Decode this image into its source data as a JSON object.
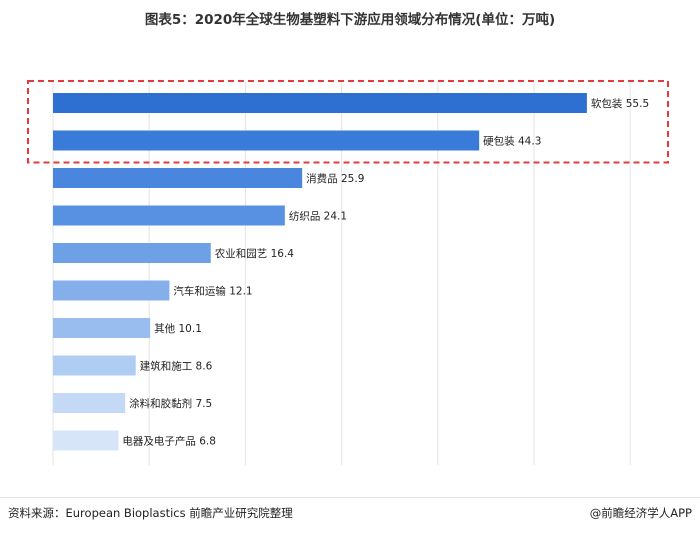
{
  "chart_data": {
    "type": "bar",
    "orientation": "horizontal",
    "title": "图表5：2020年全球生物基塑料下游应用领域分布情况(单位：万吨)",
    "categories": [
      "软包装",
      "硬包装",
      "消费品",
      "纺织品",
      "农业和园艺",
      "汽车和运输",
      "其他",
      "建筑和施工",
      "涂料和胶黏剂",
      "电器及电子产品"
    ],
    "values": [
      55.5,
      44.3,
      25.9,
      24.1,
      16.4,
      12.1,
      10.1,
      8.6,
      7.5,
      6.8
    ],
    "xlim": [
      0,
      60
    ],
    "grid": true,
    "highlighted_categories": [
      "软包装",
      "硬包装"
    ],
    "colors": [
      "#2e6fd2",
      "#3a7ad8",
      "#4a86de",
      "#5891e2",
      "#6ea0e6",
      "#84afea",
      "#98bdee",
      "#afcdf2",
      "#c3d9f5",
      "#d6e6f8"
    ],
    "highlight_box_color": "#e23b3b"
  },
  "footer": {
    "source": "资料来源：European Bioplastics 前瞻产业研究院整理",
    "brand": "@前瞻经济学人APP"
  }
}
